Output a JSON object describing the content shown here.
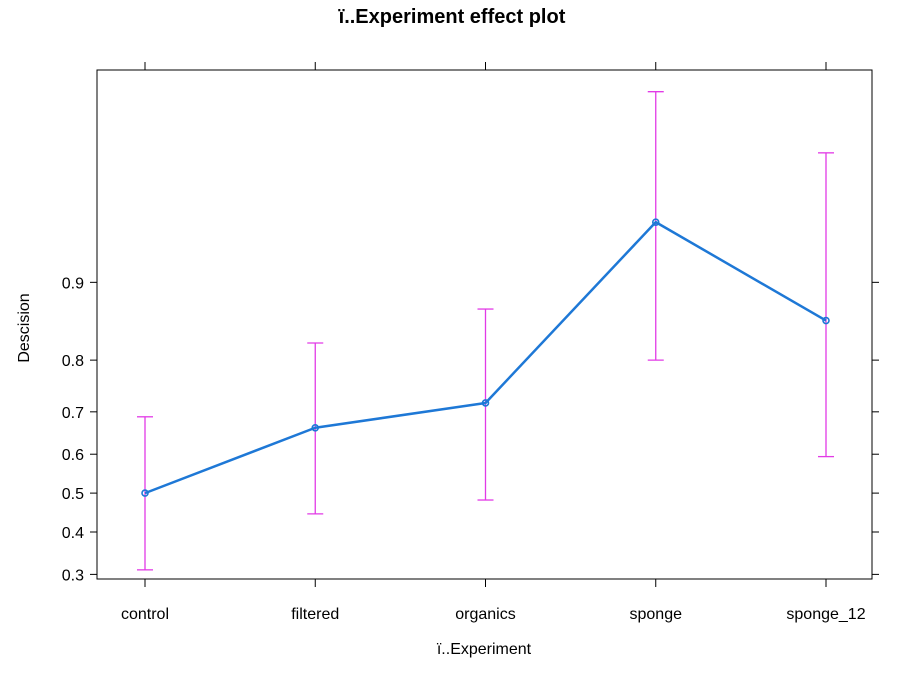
{
  "chart_data": {
    "type": "line",
    "title": "ï..Experiment effect plot",
    "xlabel": "ï..Experiment",
    "ylabel": "Descision",
    "categories": [
      "control",
      "filtered",
      "organics",
      "sponge",
      "sponge_12"
    ],
    "values": [
      0.5,
      0.664,
      0.719,
      0.944,
      0.858
    ],
    "error_bars": {
      "lower": [
        0.31,
        0.446,
        0.482,
        0.8,
        0.594
      ],
      "upper": [
        0.689,
        0.827,
        0.872,
        0.985,
        0.972
      ]
    },
    "y_ticks": [
      "0.3",
      "0.4",
      "0.5",
      "0.6",
      "0.7",
      "0.8",
      "0.9"
    ],
    "y_scale": "logit",
    "y_range": [
      0.29,
      0.988
    ],
    "grid": false,
    "legend": "none",
    "colors": {
      "line": "#1E78D6",
      "error_bar": "#E23AE6",
      "axis": "#000000"
    }
  }
}
